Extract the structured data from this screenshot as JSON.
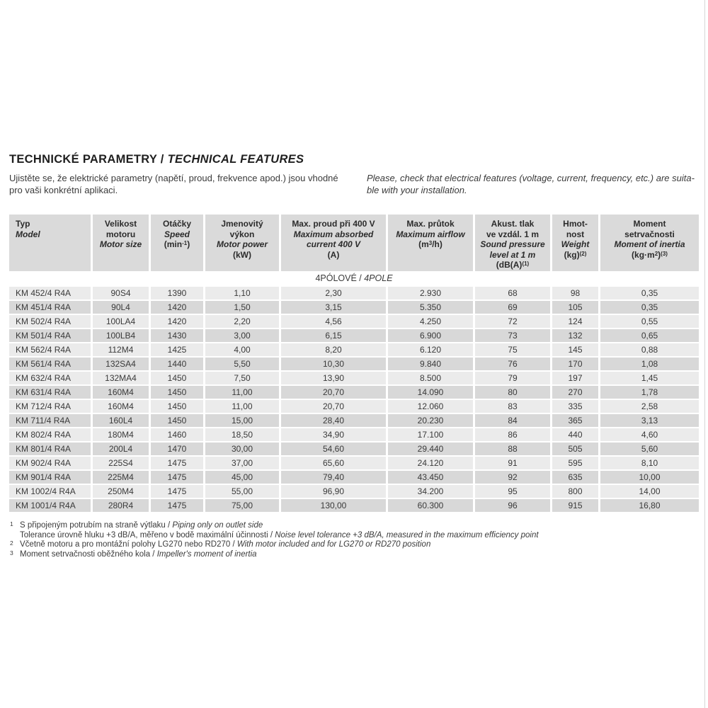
{
  "page": {
    "title": {
      "cz": "TECHNICKÉ PARAMETRY / ",
      "en": "TECHNICAL FEATURES"
    },
    "intro": {
      "cz_lines": [
        "Ujistěte se, že elektrické parametry (napětí, proud, frekvence apod.) jsou vhodné",
        "pro vaši konkrétní aplikaci."
      ],
      "en_lines": [
        "Please, check that electrical features (voltage, current, frequency, etc.) are suita-",
        "ble with your installation."
      ]
    }
  },
  "table": {
    "section": {
      "cz": "4PÓLOVÉ / ",
      "en": "4POLE"
    },
    "columns": [
      {
        "id": "typ",
        "cz": [
          "Typ"
        ],
        "en": [
          "Model"
        ],
        "unit": [],
        "align": "left"
      },
      {
        "id": "velikost",
        "cz": [
          "Velikost",
          "motoru"
        ],
        "en": [
          "Motor size"
        ],
        "unit": []
      },
      {
        "id": "otacky",
        "cz": [
          "Otáčky"
        ],
        "en": [
          "Speed"
        ],
        "unit": [
          {
            "t": "(min"
          },
          {
            "t": "-1",
            "sup": true
          },
          {
            "t": ")"
          }
        ]
      },
      {
        "id": "vykon",
        "cz": [
          "Jmenovitý",
          "výkon"
        ],
        "en": [
          "Motor power"
        ],
        "unit": [
          {
            "t": "(kW)"
          }
        ]
      },
      {
        "id": "proud",
        "cz": [
          "Max. proud při 400 V"
        ],
        "en": [
          "Maximum absorbed",
          "current 400 V"
        ],
        "unit": [
          {
            "t": "(A)"
          }
        ]
      },
      {
        "id": "prutok",
        "cz": [
          "Max. průtok"
        ],
        "en": [
          "Maximum airflow"
        ],
        "unit": [
          {
            "t": "(m"
          },
          {
            "t": "3",
            "sup": true
          },
          {
            "t": "/h)"
          }
        ]
      },
      {
        "id": "tlak",
        "cz": [
          "Akust. tlak",
          "ve vzdál. 1 m"
        ],
        "en": [
          "Sound pressure",
          "level at 1 m"
        ],
        "unit": [
          {
            "t": "(dB(A)"
          },
          {
            "t": "(1)",
            "sup": true
          }
        ]
      },
      {
        "id": "hmotnost",
        "cz": [
          "Hmot-",
          "nost"
        ],
        "en": [
          "Weight"
        ],
        "unit": [
          {
            "t": "(kg)"
          },
          {
            "t": "(2)",
            "sup": true
          }
        ]
      },
      {
        "id": "moment",
        "cz": [
          "Moment",
          "setrvačnosti"
        ],
        "en": [
          "Moment of inertia"
        ],
        "unit": [
          {
            "t": "(kg·m"
          },
          {
            "t": "2",
            "sup": true
          },
          {
            "t": ")"
          },
          {
            "t": "(3)",
            "sup": true
          }
        ]
      }
    ],
    "rows": [
      [
        "KM 452/4 R4A",
        "90S4",
        "1390",
        "1,10",
        "2,30",
        "2.930",
        "68",
        "98",
        "0,35"
      ],
      [
        "KM 451/4 R4A",
        "90L4",
        "1420",
        "1,50",
        "3,15",
        "5.350",
        "69",
        "105",
        "0,35"
      ],
      [
        "KM 502/4 R4A",
        "100LA4",
        "1420",
        "2,20",
        "4,56",
        "4.250",
        "72",
        "124",
        "0,55"
      ],
      [
        "KM 501/4 R4A",
        "100LB4",
        "1430",
        "3,00",
        "6,15",
        "6.900",
        "73",
        "132",
        "0,65"
      ],
      [
        "KM 562/4 R4A",
        "112M4",
        "1425",
        "4,00",
        "8,20",
        "6.120",
        "75",
        "145",
        "0,88"
      ],
      [
        "KM 561/4 R4A",
        "132SA4",
        "1440",
        "5,50",
        "10,30",
        "9.840",
        "76",
        "170",
        "1,08"
      ],
      [
        "KM 632/4 R4A",
        "132MA4",
        "1450",
        "7,50",
        "13,90",
        "8.500",
        "79",
        "197",
        "1,45"
      ],
      [
        "KM 631/4 R4A",
        "160M4",
        "1450",
        "11,00",
        "20,70",
        "14.090",
        "80",
        "270",
        "1,78"
      ],
      [
        "KM 712/4 R4A",
        "160M4",
        "1450",
        "11,00",
        "20,70",
        "12.060",
        "83",
        "335",
        "2,58"
      ],
      [
        "KM 711/4 R4A",
        "160L4",
        "1450",
        "15,00",
        "28,40",
        "20.230",
        "84",
        "365",
        "3,13"
      ],
      [
        "KM 802/4 R4A",
        "180M4",
        "1460",
        "18,50",
        "34,90",
        "17.100",
        "86",
        "440",
        "4,60"
      ],
      [
        "KM 801/4 R4A",
        "200L4",
        "1470",
        "30,00",
        "54,60",
        "29.440",
        "88",
        "505",
        "5,60"
      ],
      [
        "KM 902/4 R4A",
        "225S4",
        "1475",
        "37,00",
        "65,60",
        "24.120",
        "91",
        "595",
        "8,10"
      ],
      [
        "KM 901/4 R4A",
        "225M4",
        "1475",
        "45,00",
        "79,40",
        "43.450",
        "92",
        "635",
        "10,00"
      ],
      [
        "KM 1002/4 R4A",
        "250M4",
        "1475",
        "55,00",
        "96,90",
        "34.200",
        "95",
        "800",
        "14,00"
      ],
      [
        "KM 1001/4 R4A",
        "280R4",
        "1475",
        "75,00",
        "130,00",
        "60.300",
        "96",
        "915",
        "16,80"
      ]
    ]
  },
  "footnotes": [
    {
      "marker": "1",
      "cz": "S připojeným potrubím na straně výtlaku / ",
      "en": "Piping only on outlet side"
    },
    {
      "marker": "",
      "cz": "Tolerance úrovně hluku +3 dB/A, měřeno v bodě maximální účinnosti / ",
      "en": "Noise level tolerance +3 dB/A, measured in the maximum efficiency point"
    },
    {
      "marker": "2",
      "cz": "Včetně motoru a pro montážní polohy LG270 nebo RD270 / ",
      "en": "With motor included and for LG270 or RD270 position"
    },
    {
      "marker": "3",
      "cz": "Moment setrvačnosti oběžného kola / ",
      "en": "Impeller's moment of inertia"
    }
  ],
  "colors": {
    "header_bg": "#dadada",
    "row_light": "#ebebeb",
    "row_dark": "#d8d8d8",
    "text": "#3a3a3a"
  }
}
